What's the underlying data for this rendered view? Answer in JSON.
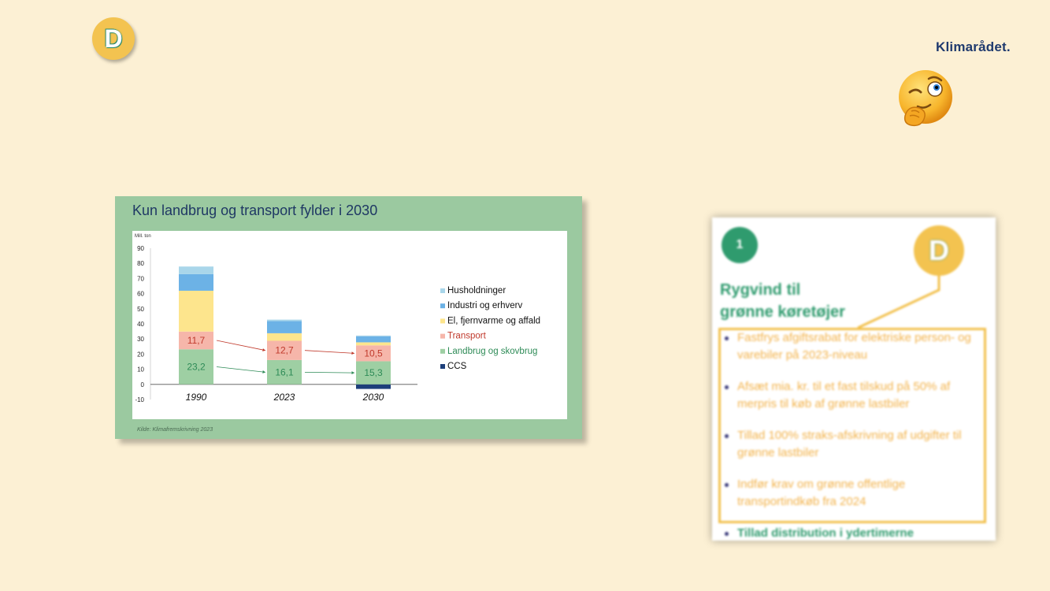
{
  "badge_top": "D",
  "brand": "Klimarådet.",
  "chart_card": {
    "title": "Kun landbrug og transport fylder i 2030",
    "source": "Kilde: Klimafremskrivning 2023"
  },
  "colors": {
    "husholdninger": "#a9d6ea",
    "industri": "#6cb2e6",
    "el": "#fde58d",
    "transport": "#f6b6aa",
    "landbrug": "#9ecfa3",
    "ccs": "#1d3f7a",
    "transport_label": "#c0392b",
    "landbrug_label": "#2e8b57"
  },
  "chart_data": {
    "type": "bar",
    "stacked": true,
    "ylabel": "Mill. ton",
    "ylim": [
      -10,
      90
    ],
    "yticks": [
      90,
      80,
      70,
      60,
      50,
      40,
      30,
      20,
      10,
      0,
      -10
    ],
    "categories": [
      "1990",
      "2023",
      "2030"
    ],
    "series": [
      {
        "name": "CCS",
        "values": [
          0,
          0,
          -3
        ]
      },
      {
        "name": "Landbrug og skovbrug",
        "values": [
          23.2,
          16.1,
          15.3
        ]
      },
      {
        "name": "Transport",
        "values": [
          11.7,
          12.7,
          10.5
        ]
      },
      {
        "name": "El, fjernvarme og affald",
        "values": [
          27,
          5,
          2
        ]
      },
      {
        "name": "Industri og erhverv",
        "values": [
          11,
          8,
          4
        ]
      },
      {
        "name": "Husholdninger",
        "values": [
          5,
          1,
          0.5
        ]
      }
    ],
    "data_labels": {
      "transport": [
        "11,7",
        "12,7",
        "10,5"
      ],
      "landbrug": [
        "23,2",
        "16,1",
        "15,3"
      ]
    },
    "legend": [
      "Husholdninger",
      "Industri og erhverv",
      "El, fjernvarme og affald",
      "Transport",
      "Landbrug og skovbrug",
      "CCS"
    ],
    "legend_position": "right",
    "grid": false
  },
  "doc_excerpt": {
    "number": "1",
    "badge": "D",
    "heading_line1": "Rygvind til",
    "heading_line2": "grønne køretøjer",
    "bullets": [
      "Fastfrys afgiftsrabat for elektriske person- og varebiler på 2023-niveau",
      "Afsæt ⁠mia. kr. til et fast tilskud på 50% af merpris til køb af grønne lastbiler",
      "Tillad 100% straks-afskrivning af udgifter til grønne lastbiler",
      "Indfør krav om grønne offentlige transportindkøb fra 2024"
    ],
    "last_bullet": "Tillad distribution i ydertimerne"
  }
}
